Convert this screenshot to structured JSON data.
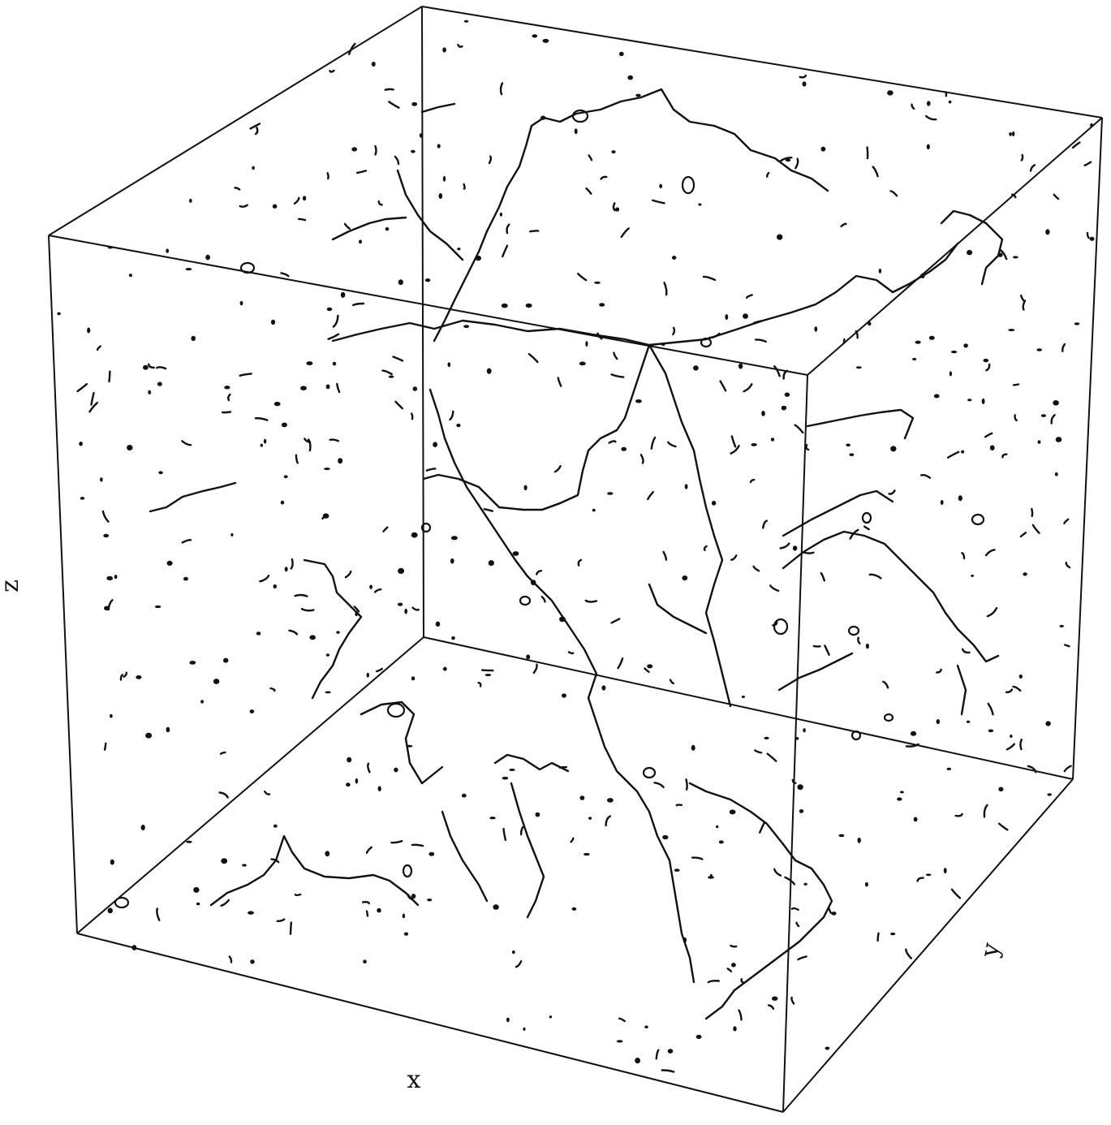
{
  "axes": {
    "x_label": "x",
    "y_label": "y",
    "z_label": "z"
  },
  "colors": {
    "ink": "#111111",
    "background": "#ffffff"
  }
}
